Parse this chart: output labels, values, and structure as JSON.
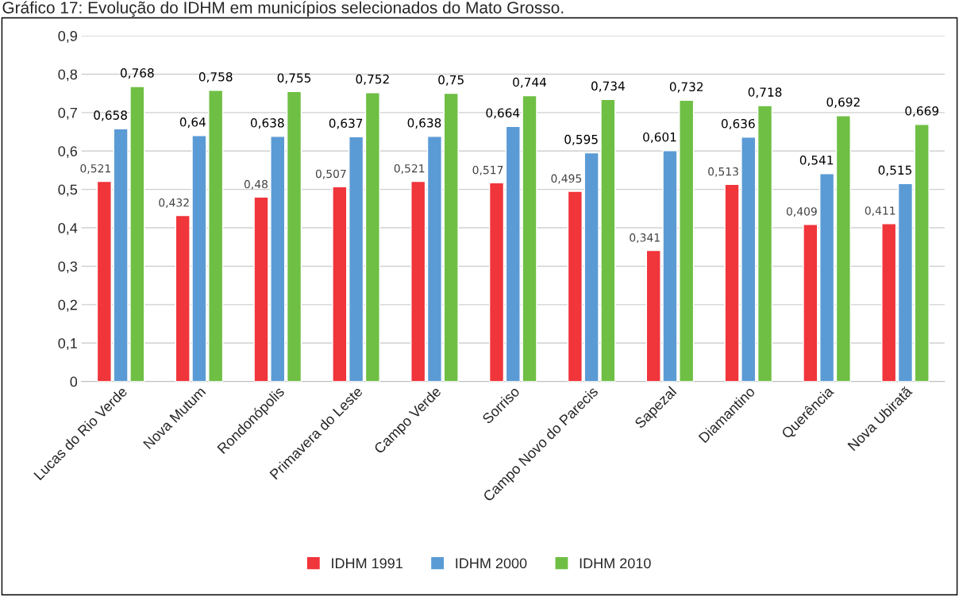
{
  "chart_data": {
    "type": "bar",
    "title": "Gráfico 17: Evolução do IDHM em municípios selecionados do Mato Grosso.",
    "categories": [
      "Lucas do Rio Verde",
      "Nova Mutum",
      "Rondonópolis",
      "Primavera do Leste",
      "Campo Verde",
      "Sorriso",
      "Campo Novo do Parecis",
      "Sapezal",
      "Diamantino",
      "Querência",
      "Nova Ubiratã"
    ],
    "series": [
      {
        "name": "IDHM 1991",
        "color": "#f0353b",
        "values": [
          0.521,
          0.432,
          0.48,
          0.507,
          0.521,
          0.517,
          0.495,
          0.341,
          0.513,
          0.409,
          0.411
        ],
        "value_labels": [
          "0,521",
          "0,432",
          "0,48",
          "0,507",
          "0,521",
          "0,517",
          "0,495",
          "0,341",
          "0,513",
          "0,409",
          "0,411"
        ]
      },
      {
        "name": "IDHM 2000",
        "color": "#5b9bd5",
        "values": [
          0.658,
          0.64,
          0.638,
          0.637,
          0.638,
          0.664,
          0.595,
          0.601,
          0.636,
          0.541,
          0.515
        ],
        "value_labels": [
          "0,658",
          "0,64",
          "0,638",
          "0,637",
          "0,638",
          "0,664",
          "0,595",
          "0,601",
          "0,636",
          "0,541",
          "0,515"
        ]
      },
      {
        "name": "IDHM 2010",
        "color": "#6fbf44",
        "values": [
          0.768,
          0.758,
          0.755,
          0.752,
          0.75,
          0.744,
          0.734,
          0.732,
          0.718,
          0.692,
          0.669
        ],
        "value_labels": [
          "0,768",
          "0,758",
          "0,755",
          "0,752",
          "0,75",
          "0,744",
          "0,734",
          "0,732",
          "0,718",
          "0,692",
          "0,669"
        ]
      }
    ],
    "ylim": [
      0,
      0.9
    ],
    "yticks": [
      0,
      {
        "value": 0.1,
        "label": "0,1"
      },
      {
        "value": 0.2,
        "label": "0,2"
      },
      {
        "value": 0.3,
        "label": "0,3"
      },
      {
        "value": 0.4,
        "label": "0,4"
      },
      {
        "value": 0.5,
        "label": "0,5"
      },
      {
        "value": 0.6,
        "label": "0,6"
      },
      {
        "value": 0.7,
        "label": "0,7"
      },
      {
        "value": 0.8,
        "label": "0,8"
      },
      {
        "value": 0.9,
        "label": "0,9"
      }
    ],
    "grid": "y",
    "legend": "bottom"
  }
}
